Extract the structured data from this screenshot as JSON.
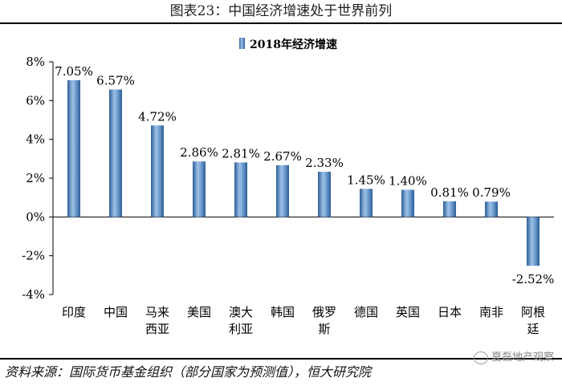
{
  "title": "图表23：中国经济增速处于世界前列",
  "source": "资料来源：国际货币基金组织（部分国家为预测值），恒大研究院",
  "watermark": "夏磊地产观察",
  "colors": {
    "bar": "#4a7fbf",
    "barLight": "#9dc1e6",
    "barDark": "#2d5e96",
    "axis": "#000000"
  },
  "chart_data": {
    "type": "bar",
    "title": "",
    "legend": {
      "label": "2018年经济增速",
      "position": "top-center"
    },
    "categories": [
      [
        "印度"
      ],
      [
        "中国"
      ],
      [
        "马来",
        "西亚"
      ],
      [
        "美国"
      ],
      [
        "澳大",
        "利亚"
      ],
      [
        "韩国"
      ],
      [
        "俄罗",
        "斯"
      ],
      [
        "德国"
      ],
      [
        "英国"
      ],
      [
        "日本"
      ],
      [
        "南非"
      ],
      [
        "阿根",
        "廷"
      ]
    ],
    "values": [
      7.05,
      6.57,
      4.72,
      2.86,
      2.81,
      2.67,
      2.33,
      1.45,
      1.4,
      0.81,
      0.79,
      -2.52
    ],
    "data_labels": [
      "7.05%",
      "6.57%",
      "4.72%",
      "2.86%",
      "2.81%",
      "2.67%",
      "2.33%",
      "1.45%",
      "1.40%",
      "0.81%",
      "0.79%",
      "-2.52%"
    ],
    "yticks": [
      8,
      6,
      4,
      2,
      0,
      -2,
      -4
    ],
    "ytick_labels": [
      "8%",
      "6%",
      "4%",
      "2%",
      "0%",
      "-2%",
      "-4%"
    ],
    "ylim": [
      -4,
      8
    ],
    "xlabel": "",
    "ylabel": "",
    "grid": false
  }
}
